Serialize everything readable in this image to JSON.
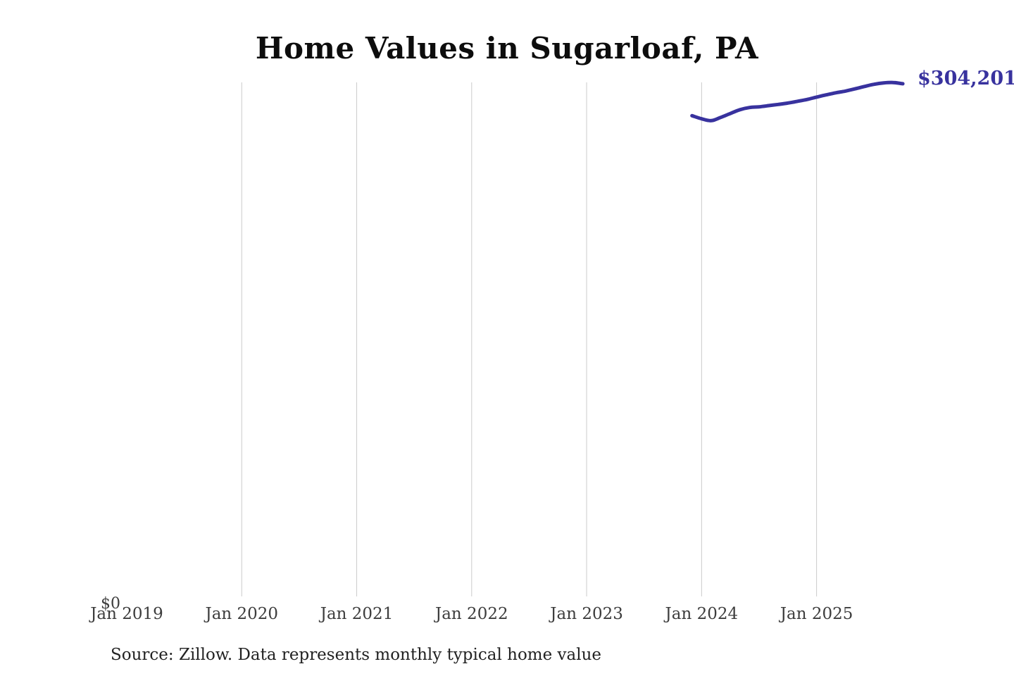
{
  "page": {
    "background_color": "#ffffff"
  },
  "chart_data": {
    "type": "line",
    "title": "Home Values in Sugarloaf, PA",
    "source_note": "Source: Zillow. Data represents monthly typical home value",
    "end_label": "$304,201",
    "latest_value": 304201,
    "y_zero_label": "$0",
    "xlabel": "",
    "ylabel": "",
    "legend": "none",
    "grid": "vertical-only",
    "ylim": [
      0,
      305000
    ],
    "x_ticks": [
      {
        "label": "Jan 2019",
        "gridline": false
      },
      {
        "label": "Jan 2020",
        "gridline": true
      },
      {
        "label": "Jan 2021",
        "gridline": true
      },
      {
        "label": "Jan 2022",
        "gridline": true
      },
      {
        "label": "Jan 2023",
        "gridline": true
      },
      {
        "label": "Jan 2024",
        "gridline": true
      },
      {
        "label": "Jan 2025",
        "gridline": true
      }
    ],
    "colors": {
      "line": "#38329e",
      "end_label_text": "#38329e",
      "gridline": "#cbcbcb",
      "tick_text": "#3d3d3d",
      "title_text": "#0d0d0d",
      "source_text": "#222222"
    },
    "series": [
      {
        "name": "Monthly typical home value",
        "x": [
          "Dec 2023",
          "Jan 2024",
          "Feb 2024",
          "Mar 2024",
          "Apr 2024",
          "May 2024",
          "Jun 2024",
          "Jul 2024",
          "Aug 2024",
          "Sep 2024",
          "Oct 2024",
          "Nov 2024",
          "Dec 2024",
          "Jan 2025",
          "Feb 2025",
          "Mar 2025",
          "Apr 2025",
          "May 2025",
          "Jun 2025",
          "Jul 2025",
          "Aug 2025",
          "Sep 2025",
          "Oct 2025"
        ],
        "values": [
          285500,
          283700,
          282600,
          284500,
          286800,
          289000,
          290300,
          290700,
          291400,
          292100,
          292900,
          293900,
          295000,
          296400,
          297700,
          298900,
          299900,
          301200,
          302600,
          303900,
          304700,
          304900,
          304201
        ]
      }
    ]
  }
}
